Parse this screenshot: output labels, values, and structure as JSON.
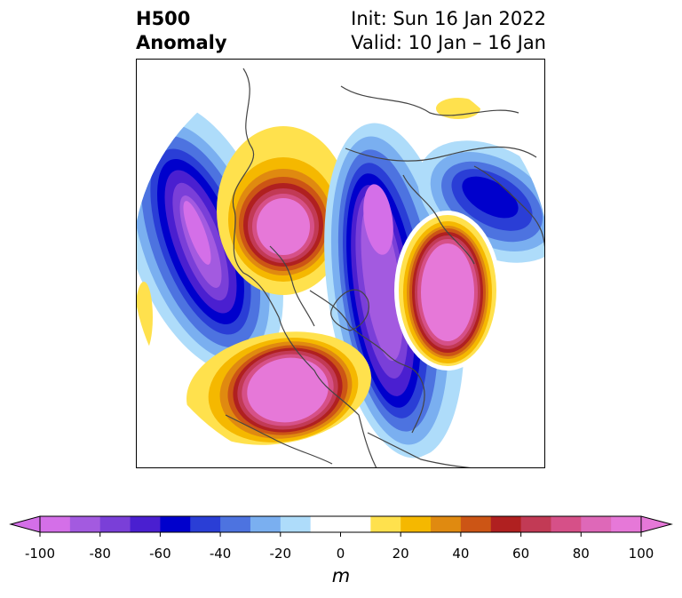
{
  "title": {
    "left_line1": "H500",
    "left_line2": "Anomaly",
    "right_line1": "Init: Sun 16 Jan 2022",
    "right_line2": "Valid: 10 Jan – 16 Jan"
  },
  "colorbar": {
    "unit": "m",
    "range": [
      -100,
      100
    ],
    "ticks": [
      "-100",
      "-80",
      "-60",
      "-40",
      "-20",
      "0",
      "20",
      "40",
      "60",
      "80",
      "100"
    ],
    "levels": [
      -100,
      -90,
      -80,
      -70,
      -60,
      -50,
      -40,
      -30,
      -20,
      -10,
      10,
      20,
      30,
      40,
      50,
      60,
      70,
      80,
      90,
      100
    ],
    "colors": [
      "#d46fe8",
      "#a35ae0",
      "#7a3fd8",
      "#4a1fd0",
      "#0000cc",
      "#2a3ed6",
      "#4d73e0",
      "#7aaff0",
      "#aedcfa",
      "#ffffff",
      "#ffffff",
      "#ffe14d",
      "#f5b800",
      "#e08a10",
      "#cc5515",
      "#b02020",
      "#c23a55",
      "#d65088",
      "#de68b8",
      "#e678d8"
    ]
  },
  "map": {
    "projection": "polar-stereographic-north",
    "anomalies": [
      {
        "name": "north-pacific-trough",
        "sign": "negative",
        "peak": -100
      },
      {
        "name": "alaska-ridge",
        "sign": "positive",
        "peak": 90
      },
      {
        "name": "hudson-bay-trough",
        "sign": "negative",
        "peak": -100
      },
      {
        "name": "north-atlantic-ridge",
        "sign": "positive",
        "peak": 100
      },
      {
        "name": "western-us-ridge",
        "sign": "positive",
        "peak": 100
      },
      {
        "name": "siberia-trough",
        "sign": "negative",
        "peak": -70
      }
    ]
  }
}
